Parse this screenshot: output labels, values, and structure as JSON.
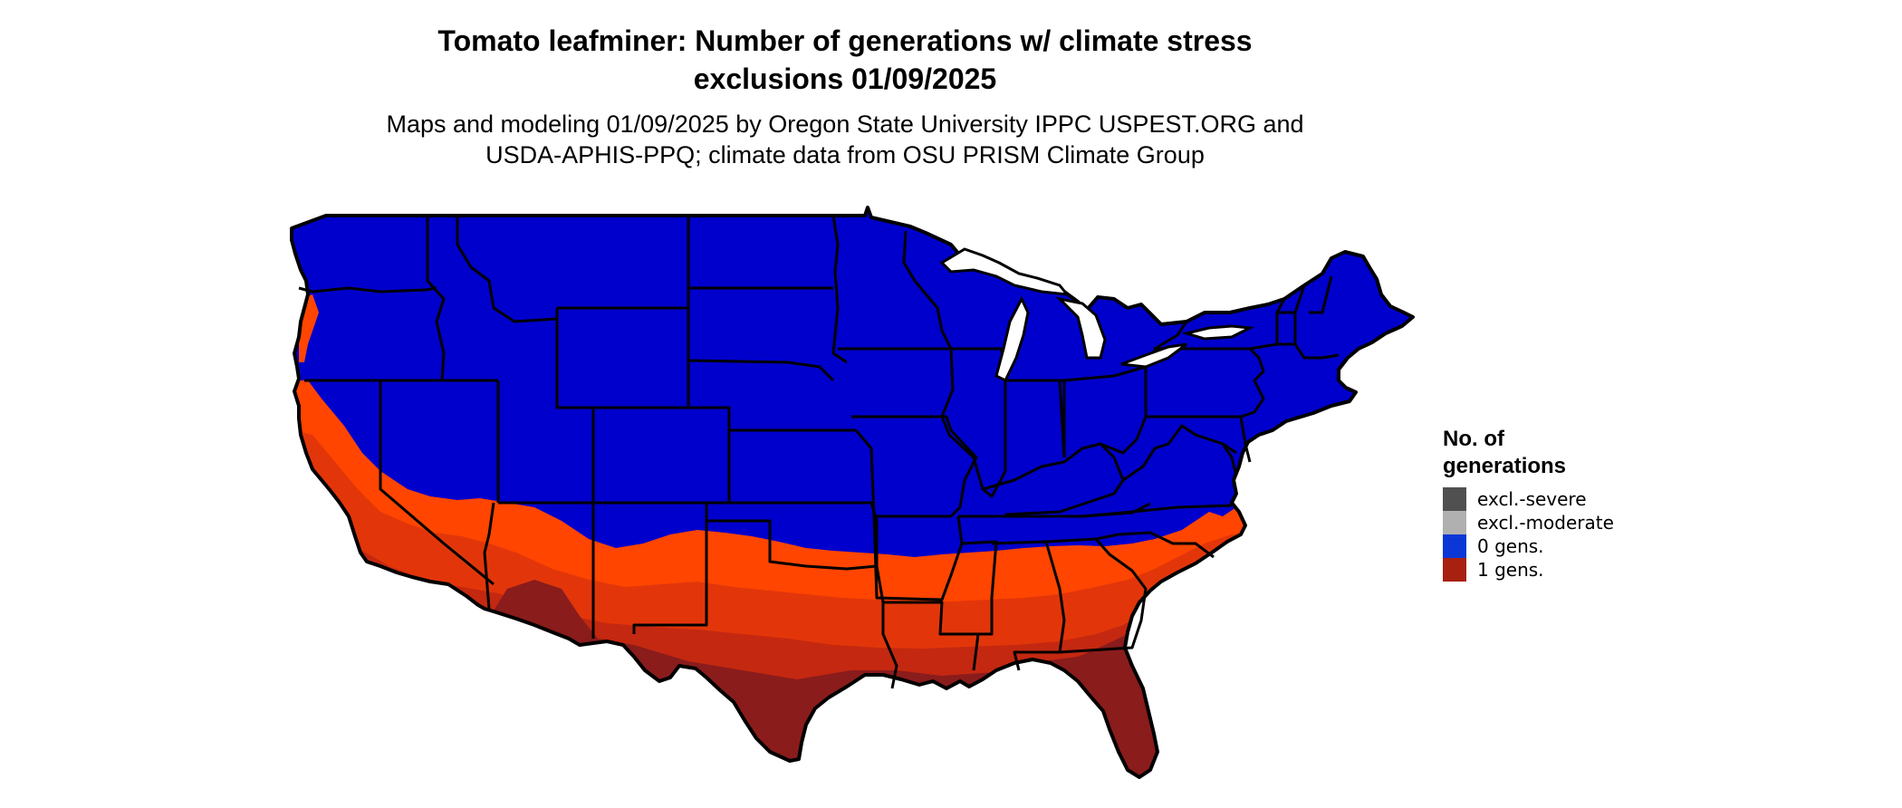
{
  "title": {
    "line1": "Tomato leafminer: Number of generations w/ climate stress",
    "line2": "exclusions 01/09/2025"
  },
  "subtitle": {
    "line1": "Maps and modeling 01/09/2025 by Oregon State University IPPC USPEST.ORG and",
    "line2": "USDA-APHIS-PPQ; climate data from OSU PRISM Climate Group"
  },
  "legend": {
    "title_line1": "No. of",
    "title_line2": "generations",
    "items": [
      {
        "label": "excl.-severe",
        "color": "#505050"
      },
      {
        "label": "excl.-moderate",
        "color": "#b0b0b0"
      },
      {
        "label": "0 gens.",
        "color": "#0a37d6"
      },
      {
        "label": "1 gens.",
        "color": "#a8200f"
      }
    ]
  },
  "colors": {
    "zero_gens_map": "#0000cc",
    "one_gen_light": "#ff4500",
    "one_gen_mid": "#e2360a",
    "one_gen_dark": "#c42810",
    "one_gen_darkest": "#8a1c1c",
    "borders": "#000000"
  }
}
